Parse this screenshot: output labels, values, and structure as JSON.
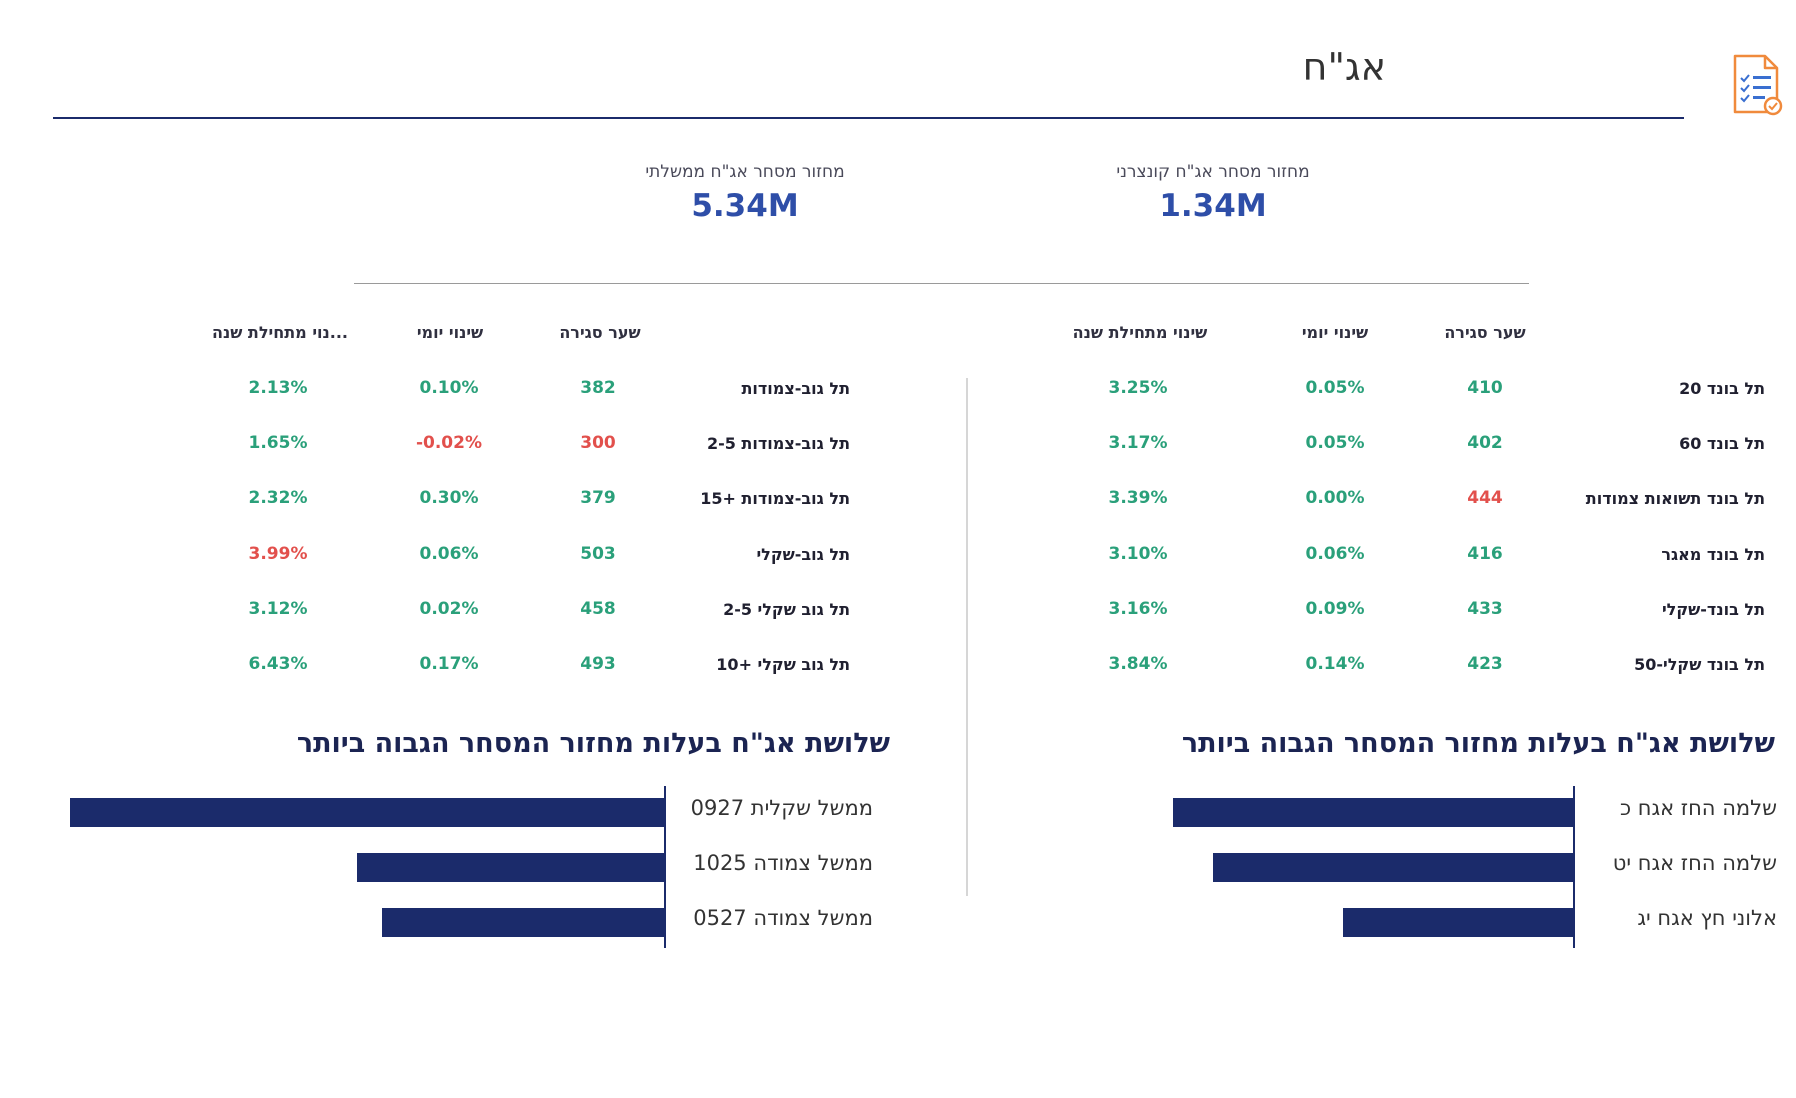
{
  "header": {
    "title": "אג\"ח",
    "icon": "checklist-document-icon"
  },
  "kpis": {
    "corporate": {
      "label": "מחזור מסחר אג\"ח קונצרני",
      "value": "1.34M"
    },
    "government": {
      "label": "מחזור מסחר אג\"ח ממשלתי",
      "value": "5.34M"
    }
  },
  "colors": {
    "positive": "#2aa07a",
    "negative": "#e2504c",
    "accent": "#2e4ea8",
    "bar": "#1b2b6b"
  },
  "corporate_table": {
    "headers": {
      "close": "שער סגירה",
      "daily": "שינוי יומי",
      "ytd": "שינוי מתחילת שנה"
    },
    "rows": [
      {
        "name": "תל בונד 20",
        "close": "410",
        "daily": "0.05%",
        "ytd": "3.25%"
      },
      {
        "name": "תל בונד 60",
        "close": "402",
        "daily": "0.05%",
        "ytd": "3.17%"
      },
      {
        "name": "תל בונד תשואות צמודות",
        "close": "444",
        "daily": "0.00%",
        "ytd": "3.39%"
      },
      {
        "name": "תל בונד מאגר",
        "close": "416",
        "daily": "0.06%",
        "ytd": "3.10%"
      },
      {
        "name": "תל בונד-שקלי",
        "close": "433",
        "daily": "0.09%",
        "ytd": "3.16%"
      },
      {
        "name": "תל בונד שקלי-50",
        "close": "423",
        "daily": "0.14%",
        "ytd": "3.84%"
      }
    ]
  },
  "government_table": {
    "headers": {
      "close": "שער סגירה",
      "daily": "שינוי יומי",
      "ytd": "...נוי מתחילת שנה"
    },
    "rows": [
      {
        "name": "תל גוב-צמודות",
        "close": "382",
        "daily": "0.10%",
        "ytd": "2.13%"
      },
      {
        "name": "תל גוב-צמודות 2-5",
        "close": "300",
        "daily": "-0.02%",
        "ytd": "1.65%"
      },
      {
        "name": "תל גוב-צמודות +15",
        "close": "379",
        "daily": "0.30%",
        "ytd": "2.32%"
      },
      {
        "name": "תל גוב-שקלי",
        "close": "503",
        "daily": "0.06%",
        "ytd": "3.99%"
      },
      {
        "name": "תל גוב שקלי 2-5",
        "close": "458",
        "daily": "0.02%",
        "ytd": "3.12%"
      },
      {
        "name": "תל גוב שקלי +10",
        "close": "493",
        "daily": "0.17%",
        "ytd": "6.43%"
      }
    ]
  },
  "corporate_top": {
    "title": "שלושת אג\"ח בעלות מחזור המסחר הגבוה ביותר",
    "items": [
      {
        "label": "שלמה החז אגח  כ",
        "share": 0.4
      },
      {
        "label": "שלמה החז אגח יט",
        "share": 0.36
      },
      {
        "label": "אלוני חץ אגח יג",
        "share": 0.23
      }
    ]
  },
  "government_top": {
    "title": "שלושת אג\"ח בעלות מחזור המסחר הגבוה ביותר",
    "items": [
      {
        "label": "ממשל שקלית 0927",
        "share": 0.6
      },
      {
        "label": "ממשל צמודה 1025",
        "share": 0.31
      },
      {
        "label": "ממשל צמודה 0527",
        "share": 0.285
      }
    ]
  }
}
